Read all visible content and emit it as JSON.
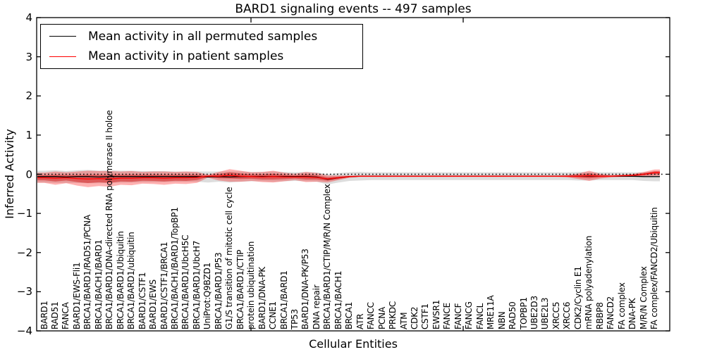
{
  "title": "BARD1 signaling events -- 497 samples",
  "axes": {
    "ylabel": "Inferred Activity",
    "xlabel": "Cellular Entities",
    "yticks": [
      "4",
      "3",
      "2",
      "1",
      "0",
      "−1",
      "−2",
      "−3",
      "−4"
    ],
    "ylim": [
      -4,
      4
    ]
  },
  "legend": {
    "items": [
      {
        "label": "Mean activity in all permuted samples",
        "color": "#000000"
      },
      {
        "label": "Mean activity in patient samples",
        "color": "#ff0000"
      }
    ]
  },
  "colors": {
    "permuted_line": "#000000",
    "patient_line": "#ff0000",
    "permuted_band": "#bbbbbb",
    "patient_band_outer": "#ff0000",
    "patient_band_inner": "#cc0000",
    "zero_line": "#000000",
    "background": "#ffffff"
  },
  "chart_data": {
    "type": "line",
    "title": "BARD1 signaling events -- 497 samples",
    "xlabel": "Cellular Entities",
    "ylabel": "Inferred Activity",
    "ylim": [
      -4,
      4
    ],
    "zero_line": true,
    "legend_position": "upper left",
    "categories": [
      "BARD1",
      "RAD51",
      "FANCA",
      "BARD1/EWS-Fli1",
      "BRCA1/BARD1/RAD51/PCNA",
      "BRCA1/BACH1/BARD1",
      "BRCA1/BARD1/DNA-directed RNA polymerase II holoe",
      "BRCA1/BARD1/Ubiquitin",
      "BRCA1/BARD1/ubiquitin",
      "BARD1/CSTF1",
      "BARD1/EWS",
      "BARD1/CSTF1/BRCA1",
      "BRCA1/BACH1/BARD1/TopBP1",
      "BRCA1/BARD1/UbcH5C",
      "BRCA1/BARD1/UbcH7",
      "UniProt:Q9BZD1",
      "BRCA1/BARD1/P53",
      "G1/S transition of mitotic cell cycle",
      "BRCA1/BARD1/CTIP",
      "protein ubiquitination",
      "BARD1/DNA-PK",
      "CCNE1",
      "BRCA1/BARD1",
      "TP53",
      "BARD1/DNA-PK/P53",
      "DNA repair",
      "BRCA1/BARD1/CTIP/M/R/N Complex",
      "BRCA1/BACH1",
      "BRCA1",
      "ATR",
      "FANCC",
      "PCNA",
      "PRKDC",
      "ATM",
      "CDK2",
      "CSTF1",
      "EWSR1",
      "FANCE",
      "FANCF",
      "FANCG",
      "FANCL",
      "MRE11A",
      "NBN",
      "RAD50",
      "TOPBP1",
      "UBE2D3",
      "UBE2L3",
      "XRCC5",
      "XRCC6",
      "CDK2/Cyclin E1",
      "mRNA polyadenylation",
      "RBBP8",
      "FANCD2",
      "FA complex",
      "DNA-PK",
      "M/R/N Complex",
      "FA complex/FANCD2/Ubiquitin"
    ],
    "series": [
      {
        "name": "Mean activity in all permuted samples",
        "color": "#000000",
        "values": [
          -0.06,
          -0.06,
          -0.07,
          -0.06,
          -0.06,
          -0.07,
          -0.06,
          -0.06,
          -0.06,
          -0.06,
          -0.06,
          -0.06,
          -0.06,
          -0.06,
          -0.06,
          -0.07,
          -0.06,
          -0.07,
          -0.06,
          -0.06,
          -0.06,
          -0.06,
          -0.06,
          -0.06,
          -0.06,
          -0.07,
          -0.13,
          -0.09,
          -0.06,
          -0.05,
          -0.05,
          -0.05,
          -0.05,
          -0.05,
          -0.05,
          -0.05,
          -0.05,
          -0.05,
          -0.05,
          -0.05,
          -0.05,
          -0.05,
          -0.05,
          -0.05,
          -0.05,
          -0.05,
          -0.05,
          -0.05,
          -0.05,
          -0.05,
          -0.05,
          -0.05,
          -0.05,
          -0.05,
          -0.05,
          -0.06,
          -0.06
        ],
        "band_halfwidth": [
          0.15,
          0.16,
          0.15,
          0.16,
          0.17,
          0.16,
          0.16,
          0.15,
          0.15,
          0.14,
          0.14,
          0.14,
          0.13,
          0.13,
          0.13,
          0.14,
          0.13,
          0.14,
          0.13,
          0.12,
          0.12,
          0.13,
          0.12,
          0.11,
          0.12,
          0.12,
          0.13,
          0.12,
          0.11,
          0.11,
          0.1,
          0.1,
          0.1,
          0.1,
          0.1,
          0.1,
          0.1,
          0.1,
          0.1,
          0.1,
          0.1,
          0.1,
          0.1,
          0.1,
          0.1,
          0.1,
          0.1,
          0.1,
          0.1,
          0.11,
          0.11,
          0.1,
          0.1,
          0.1,
          0.1,
          0.11,
          0.12
        ]
      },
      {
        "name": "Mean activity in patient samples",
        "color": "#ff0000",
        "values": [
          -0.09,
          -0.1,
          -0.09,
          -0.11,
          -0.12,
          -0.11,
          -0.12,
          -0.1,
          -0.1,
          -0.09,
          -0.09,
          -0.1,
          -0.09,
          -0.09,
          -0.08,
          -0.05,
          -0.05,
          -0.03,
          -0.05,
          -0.06,
          -0.07,
          -0.06,
          -0.07,
          -0.07,
          -0.07,
          -0.08,
          -0.12,
          -0.09,
          -0.06,
          -0.05,
          -0.05,
          -0.05,
          -0.05,
          -0.05,
          -0.05,
          -0.05,
          -0.05,
          -0.05,
          -0.05,
          -0.05,
          -0.05,
          -0.05,
          -0.05,
          -0.05,
          -0.05,
          -0.05,
          -0.05,
          -0.05,
          -0.05,
          -0.05,
          -0.04,
          -0.05,
          -0.05,
          -0.04,
          -0.03,
          0.0,
          0.04
        ],
        "band_halfwidth": [
          0.13,
          0.17,
          0.14,
          0.18,
          0.21,
          0.19,
          0.2,
          0.17,
          0.18,
          0.15,
          0.16,
          0.17,
          0.15,
          0.16,
          0.14,
          0.04,
          0.11,
          0.16,
          0.14,
          0.11,
          0.13,
          0.15,
          0.11,
          0.08,
          0.13,
          0.11,
          0.09,
          0.06,
          0.03,
          0.02,
          0.02,
          0.02,
          0.02,
          0.02,
          0.02,
          0.02,
          0.02,
          0.02,
          0.02,
          0.02,
          0.02,
          0.02,
          0.02,
          0.02,
          0.02,
          0.02,
          0.02,
          0.02,
          0.03,
          0.07,
          0.13,
          0.06,
          0.03,
          0.03,
          0.04,
          0.06,
          0.08
        ]
      }
    ]
  }
}
